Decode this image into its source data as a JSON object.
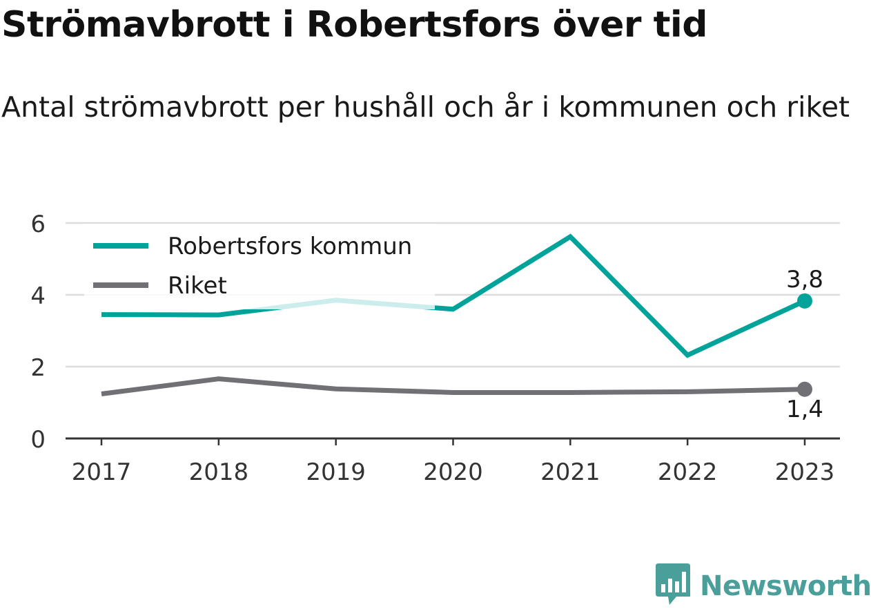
{
  "title": "Strömavbrott i Robertsfors över tid",
  "subtitle": "Antal strömavbrott per hushåll och år i kommunen och riket",
  "brand": {
    "name": "Newsworthy",
    "icon": "newsworthy-logo-icon",
    "color": "#4a9f9a"
  },
  "colors": {
    "grid": "#dcdcdc",
    "axis": "#333333",
    "tick_text": "#333333"
  },
  "chart_data": {
    "type": "line",
    "x": [
      "2017",
      "2018",
      "2019",
      "2020",
      "2021",
      "2022",
      "2023"
    ],
    "ylim": [
      0,
      6
    ],
    "yticks": [
      "0",
      "2",
      "4",
      "6"
    ],
    "grid": true,
    "legend_position": "top-left",
    "series": [
      {
        "name": "Robertsfors kommun",
        "color": "#00a39a",
        "values": [
          3.45,
          3.44,
          3.85,
          3.6,
          5.62,
          2.32,
          3.83
        ],
        "end_label": "3,8"
      },
      {
        "name": "Riket",
        "color": "#717075",
        "values": [
          1.24,
          1.66,
          1.38,
          1.28,
          1.28,
          1.3,
          1.37
        ],
        "end_label": "1,4"
      }
    ]
  }
}
